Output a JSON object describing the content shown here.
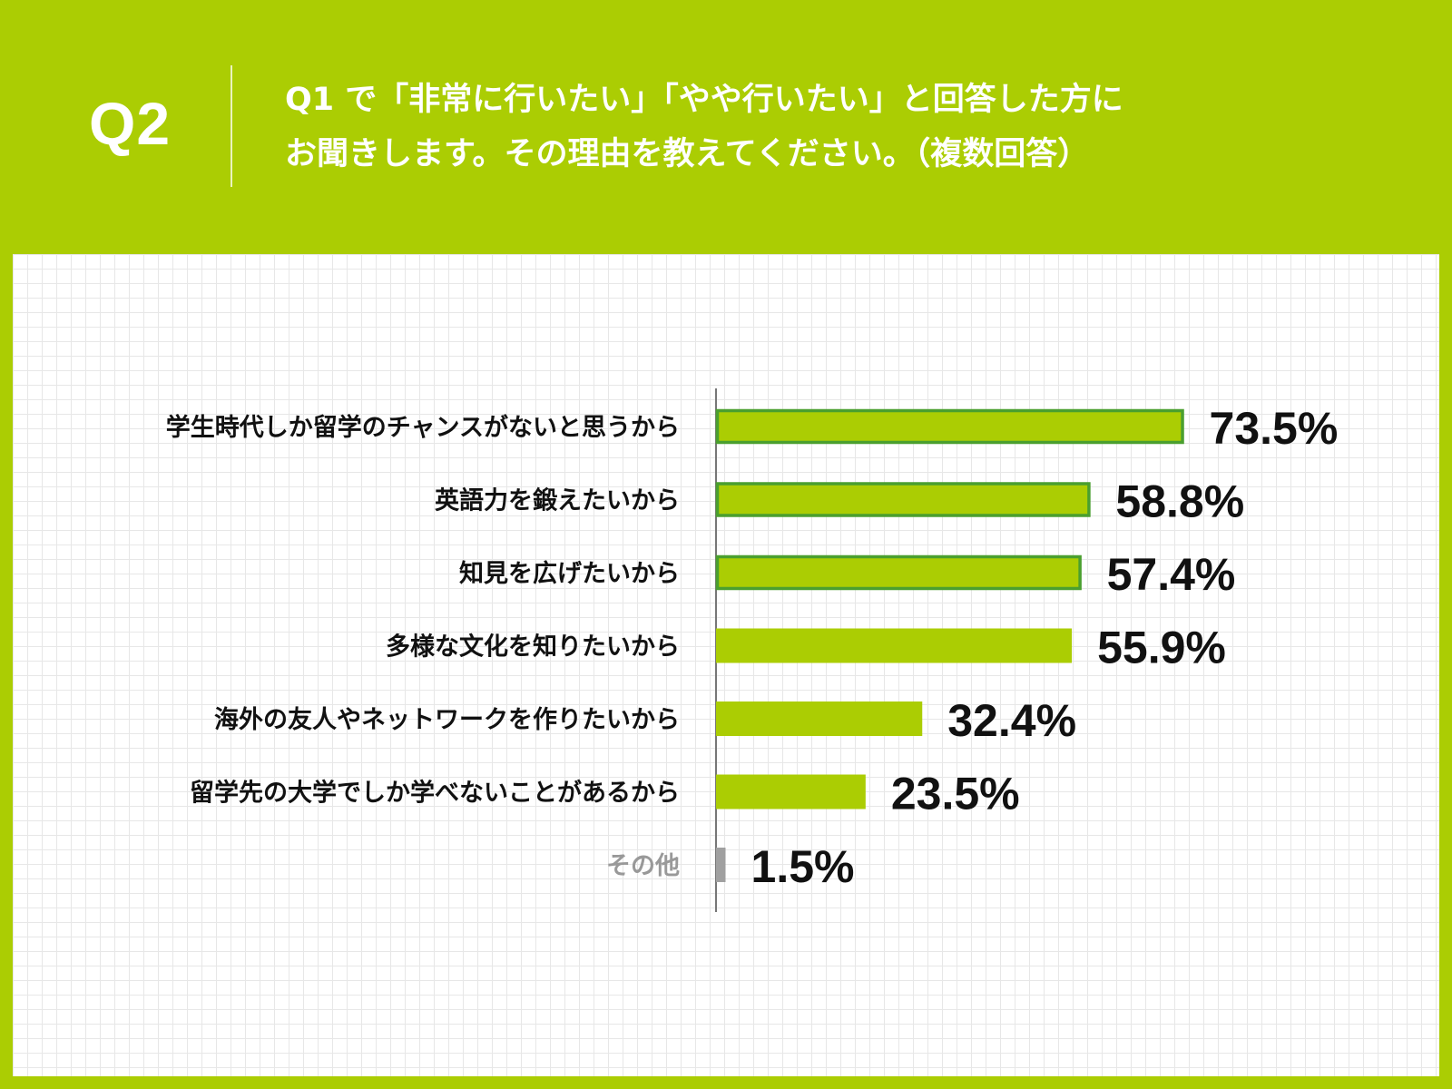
{
  "header": {
    "question_label": "Q2",
    "question_line1": "Q1 で「非常に行いたい」「やや行いたい」と回答した方に",
    "question_line2": "お聞きします。その理由を教えてください。（複数回答）"
  },
  "colors": {
    "background": "#abcd03",
    "bar": "#abcd03",
    "highlight_border": "#4a9f2f",
    "other_bar": "#a0a0a0",
    "other_label": "#999999",
    "text": "#111111"
  },
  "chart_data": {
    "type": "bar",
    "orientation": "horizontal",
    "categories": [
      "学生時代しか留学のチャンスがないと思うから",
      "英語力を鍛えたいから",
      "知見を広げたいから",
      "多様な文化を知りたいから",
      "海外の友人やネットワークを作りたいから",
      "留学先の大学でしか学べないことがあるから",
      "その他"
    ],
    "values": [
      73.5,
      58.8,
      57.4,
      55.9,
      32.4,
      23.5,
      1.5
    ],
    "value_labels": [
      "73.5%",
      "58.8%",
      "57.4%",
      "55.9%",
      "32.4%",
      "23.5%",
      "1.5%"
    ],
    "highlighted": [
      true,
      true,
      true,
      false,
      false,
      false,
      false
    ],
    "unit": "%",
    "xlim": [
      0,
      100
    ],
    "grid": false,
    "legend": "none"
  }
}
